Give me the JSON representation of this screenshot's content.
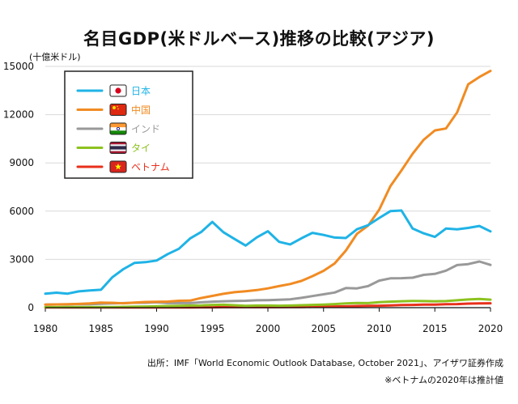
{
  "chart_data": {
    "type": "line",
    "title": "名目GDP(米ドルベース)推移の比較(アジア)",
    "ylabel": "(十億米ドル)",
    "xlabel": "",
    "xlim": [
      1980,
      2020
    ],
    "ylim": [
      0,
      15000
    ],
    "x_ticks": [
      1980,
      1985,
      1990,
      1995,
      2000,
      2005,
      2010,
      2015,
      2020
    ],
    "y_ticks": [
      0,
      3000,
      6000,
      9000,
      12000,
      15000
    ],
    "y_tick_labels": [
      "0",
      "3000",
      "6000",
      "9000",
      "12000",
      "15000"
    ],
    "grid": "horizontal",
    "legend_position": "top-left",
    "x": [
      1980,
      1981,
      1982,
      1983,
      1984,
      1985,
      1986,
      1987,
      1988,
      1989,
      1990,
      1991,
      1992,
      1993,
      1994,
      1995,
      1996,
      1997,
      1998,
      1999,
      2000,
      2001,
      2002,
      2003,
      2004,
      2005,
      2006,
      2007,
      2008,
      2009,
      2010,
      2011,
      2012,
      2013,
      2014,
      2015,
      2016,
      2017,
      2018,
      2019,
      2020
    ],
    "series": [
      {
        "name": "日本",
        "color": "#1fb3e6",
        "flag": "japan-flag-icon",
        "values": [
          870,
          930,
          870,
          1010,
          1070,
          1110,
          1880,
          2390,
          2780,
          2830,
          2930,
          3330,
          3660,
          4300,
          4700,
          5330,
          4690,
          4270,
          3860,
          4370,
          4750,
          4090,
          3930,
          4310,
          4650,
          4520,
          4360,
          4330,
          4870,
          5130,
          5570,
          6000,
          6040,
          4920,
          4620,
          4400,
          4920,
          4870,
          4960,
          5080,
          4740
        ]
      },
      {
        "name": "中国",
        "color": "#f18b22",
        "flag": "china-flag-icon",
        "values": [
          190,
          200,
          210,
          230,
          260,
          310,
          300,
          270,
          310,
          350,
          360,
          380,
          430,
          440,
          600,
          730,
          860,
          960,
          1020,
          1090,
          1200,
          1340,
          1470,
          1660,
          1960,
          2290,
          2750,
          3550,
          4590,
          5100,
          6090,
          7550,
          8530,
          9570,
          10440,
          11020,
          11140,
          12140,
          13890,
          14340,
          14720
        ]
      },
      {
        "name": "インド",
        "color": "#999999",
        "flag": "india-flag-icon",
        "values": [
          190,
          200,
          200,
          220,
          210,
          240,
          260,
          280,
          300,
          300,
          330,
          280,
          290,
          280,
          330,
          370,
          400,
          420,
          430,
          460,
          470,
          490,
          520,
          610,
          720,
          830,
          940,
          1220,
          1200,
          1340,
          1680,
          1820,
          1830,
          1860,
          2040,
          2100,
          2300,
          2650,
          2710,
          2870,
          2660
        ]
      },
      {
        "name": "タイ",
        "color": "#8dc21f",
        "flag": "thailand-flag-icon",
        "values": [
          30,
          30,
          40,
          40,
          40,
          40,
          40,
          50,
          60,
          70,
          90,
          100,
          110,
          130,
          140,
          170,
          180,
          150,
          110,
          130,
          130,
          120,
          130,
          150,
          170,
          190,
          220,
          260,
          290,
          280,
          340,
          370,
          400,
          420,
          410,
          400,
          410,
          460,
          510,
          540,
          500
        ]
      },
      {
        "name": "ベトナム",
        "color": "#e8301b",
        "flag": "vietnam-flag-icon",
        "values": [
          10,
          10,
          10,
          10,
          10,
          10,
          10,
          10,
          10,
          10,
          10,
          10,
          10,
          10,
          20,
          20,
          30,
          30,
          30,
          30,
          30,
          30,
          40,
          40,
          50,
          60,
          70,
          80,
          100,
          110,
          120,
          140,
          160,
          170,
          190,
          190,
          210,
          220,
          250,
          260,
          270
        ]
      }
    ]
  },
  "footer": {
    "source": "出所：IMF「World Economic Outlook Database, October 2021」、アイザワ証券作成",
    "note": "※ベトナムの2020年は推計値"
  }
}
